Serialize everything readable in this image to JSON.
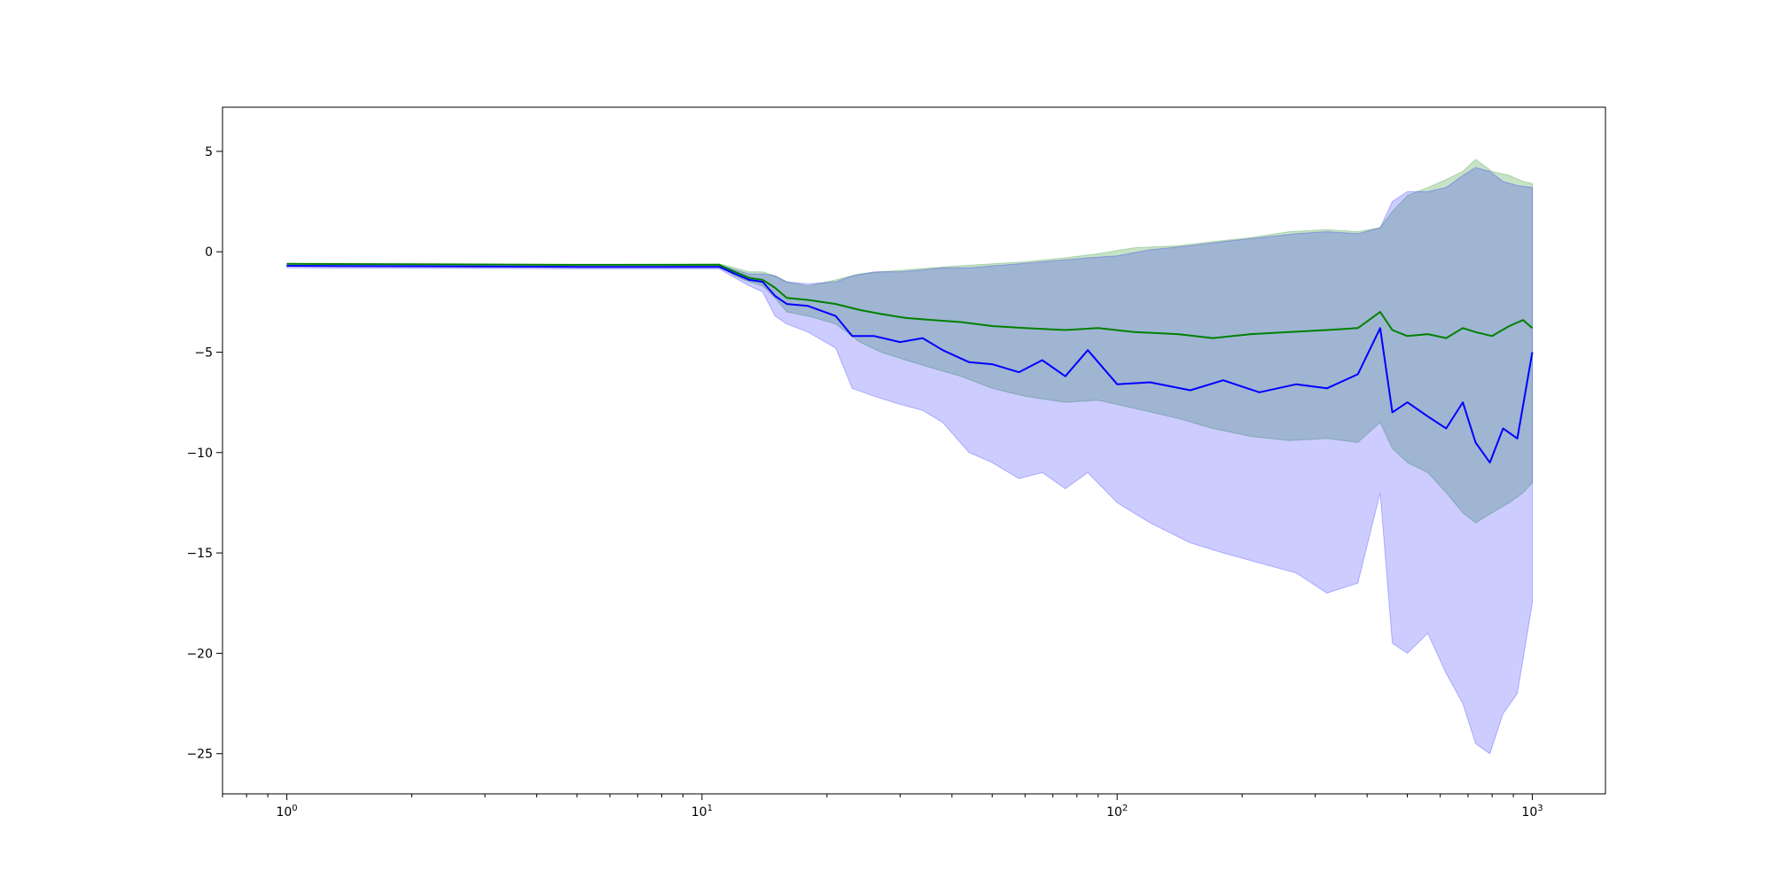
{
  "chart_data": {
    "type": "line",
    "title": "",
    "xlabel": "",
    "ylabel": "",
    "xscale": "log",
    "xlim": [
      0.7,
      1500
    ],
    "ylim": [
      -27,
      7.2
    ],
    "grid": false,
    "legend": "none",
    "x_ticks": [
      {
        "value": 1,
        "base": "10",
        "exp": "0"
      },
      {
        "value": 10,
        "base": "10",
        "exp": "1"
      },
      {
        "value": 100,
        "base": "10",
        "exp": "2"
      },
      {
        "value": 1000,
        "base": "10",
        "exp": "3"
      }
    ],
    "y_ticks": [
      {
        "value": 5,
        "label": "5"
      },
      {
        "value": 0,
        "label": "0"
      },
      {
        "value": -5,
        "label": "−5"
      },
      {
        "value": -10,
        "label": "−10"
      },
      {
        "value": -15,
        "label": "−15"
      },
      {
        "value": -20,
        "label": "−20"
      },
      {
        "value": -25,
        "label": "−25"
      }
    ],
    "series": [
      {
        "color": "#008000",
        "band_color": "#008000",
        "band_opacity": 0.22,
        "points": [
          [
            1,
            -0.6,
            -0.6,
            -0.6
          ],
          [
            5,
            -0.65,
            -0.65,
            -0.65
          ],
          [
            11,
            -0.65,
            -0.7,
            -0.6
          ],
          [
            12,
            -1.0,
            -1.2,
            -0.8
          ],
          [
            13,
            -1.3,
            -1.5,
            -1.0
          ],
          [
            14,
            -1.4,
            -1.7,
            -1.0
          ],
          [
            15,
            -1.8,
            -2.3,
            -1.2
          ],
          [
            16,
            -2.3,
            -3.0,
            -1.5
          ],
          [
            18,
            -2.4,
            -3.2,
            -1.7
          ],
          [
            21,
            -2.6,
            -3.6,
            -1.4
          ],
          [
            24,
            -2.9,
            -4.5,
            -1.1
          ],
          [
            27,
            -3.1,
            -5.0,
            -1.0
          ],
          [
            31,
            -3.3,
            -5.4,
            -0.9
          ],
          [
            36,
            -3.4,
            -5.8,
            -0.8
          ],
          [
            42,
            -3.5,
            -6.2,
            -0.7
          ],
          [
            50,
            -3.7,
            -6.8,
            -0.6
          ],
          [
            60,
            -3.8,
            -7.2,
            -0.5
          ],
          [
            75,
            -3.9,
            -7.5,
            -0.3
          ],
          [
            90,
            -3.8,
            -7.4,
            -0.1
          ],
          [
            110,
            -4.0,
            -7.8,
            0.2
          ],
          [
            140,
            -4.1,
            -8.3,
            0.3
          ],
          [
            170,
            -4.3,
            -8.8,
            0.5
          ],
          [
            210,
            -4.1,
            -9.2,
            0.7
          ],
          [
            260,
            -4.0,
            -9.4,
            1.0
          ],
          [
            320,
            -3.9,
            -9.3,
            1.1
          ],
          [
            380,
            -3.8,
            -9.5,
            1.0
          ],
          [
            430,
            -3.0,
            -8.5,
            1.2
          ],
          [
            460,
            -3.9,
            -9.8,
            2.0
          ],
          [
            500,
            -4.2,
            -10.5,
            2.8
          ],
          [
            560,
            -4.1,
            -11.0,
            3.2
          ],
          [
            620,
            -4.3,
            -12.0,
            3.6
          ],
          [
            680,
            -3.8,
            -13.0,
            4.0
          ],
          [
            730,
            -4.0,
            -13.5,
            4.6
          ],
          [
            800,
            -4.2,
            -13.0,
            4.0
          ],
          [
            880,
            -3.7,
            -12.5,
            3.8
          ],
          [
            950,
            -3.4,
            -12.0,
            3.5
          ],
          [
            1000,
            -3.8,
            -11.5,
            3.4
          ]
        ]
      },
      {
        "color": "#0000ff",
        "band_color": "#0000ff",
        "band_opacity": 0.2,
        "points": [
          [
            1,
            -0.7,
            -0.8,
            -0.6
          ],
          [
            5,
            -0.75,
            -0.85,
            -0.65
          ],
          [
            11,
            -0.75,
            -0.85,
            -0.65
          ],
          [
            12,
            -1.1,
            -1.3,
            -0.9
          ],
          [
            13,
            -1.4,
            -1.7,
            -1.1
          ],
          [
            14,
            -1.5,
            -2.0,
            -1.1
          ],
          [
            15,
            -2.2,
            -3.2,
            -1.2
          ],
          [
            16,
            -2.6,
            -3.6,
            -1.5
          ],
          [
            18,
            -2.7,
            -4.0,
            -1.6
          ],
          [
            21,
            -3.2,
            -4.8,
            -1.5
          ],
          [
            23,
            -4.2,
            -6.8,
            -1.2
          ],
          [
            26,
            -4.2,
            -7.2,
            -1.0
          ],
          [
            30,
            -4.5,
            -7.6,
            -1.0
          ],
          [
            34,
            -4.3,
            -7.9,
            -0.9
          ],
          [
            38,
            -4.9,
            -8.5,
            -0.8
          ],
          [
            44,
            -5.5,
            -10.0,
            -0.8
          ],
          [
            50,
            -5.6,
            -10.5,
            -0.7
          ],
          [
            58,
            -6.0,
            -11.3,
            -0.6
          ],
          [
            66,
            -5.4,
            -11.0,
            -0.5
          ],
          [
            75,
            -6.2,
            -11.8,
            -0.4
          ],
          [
            85,
            -4.9,
            -11.0,
            -0.3
          ],
          [
            100,
            -6.6,
            -12.5,
            -0.2
          ],
          [
            120,
            -6.5,
            -13.5,
            0.1
          ],
          [
            150,
            -6.9,
            -14.5,
            0.3
          ],
          [
            180,
            -6.4,
            -15.0,
            0.5
          ],
          [
            220,
            -7.0,
            -15.5,
            0.7
          ],
          [
            270,
            -6.6,
            -16.0,
            0.9
          ],
          [
            320,
            -6.8,
            -17.0,
            1.0
          ],
          [
            380,
            -6.1,
            -16.5,
            0.9
          ],
          [
            430,
            -3.8,
            -12.0,
            1.2
          ],
          [
            460,
            -8.0,
            -19.5,
            2.5
          ],
          [
            500,
            -7.5,
            -20.0,
            3.0
          ],
          [
            560,
            -8.2,
            -19.0,
            3.0
          ],
          [
            620,
            -8.8,
            -21.0,
            3.2
          ],
          [
            680,
            -7.5,
            -22.5,
            3.8
          ],
          [
            730,
            -9.5,
            -24.5,
            4.2
          ],
          [
            790,
            -10.5,
            -25.0,
            4.0
          ],
          [
            850,
            -8.8,
            -23.0,
            3.5
          ],
          [
            920,
            -9.3,
            -22.0,
            3.3
          ],
          [
            1000,
            -5.0,
            -17.5,
            3.2
          ]
        ]
      }
    ]
  }
}
